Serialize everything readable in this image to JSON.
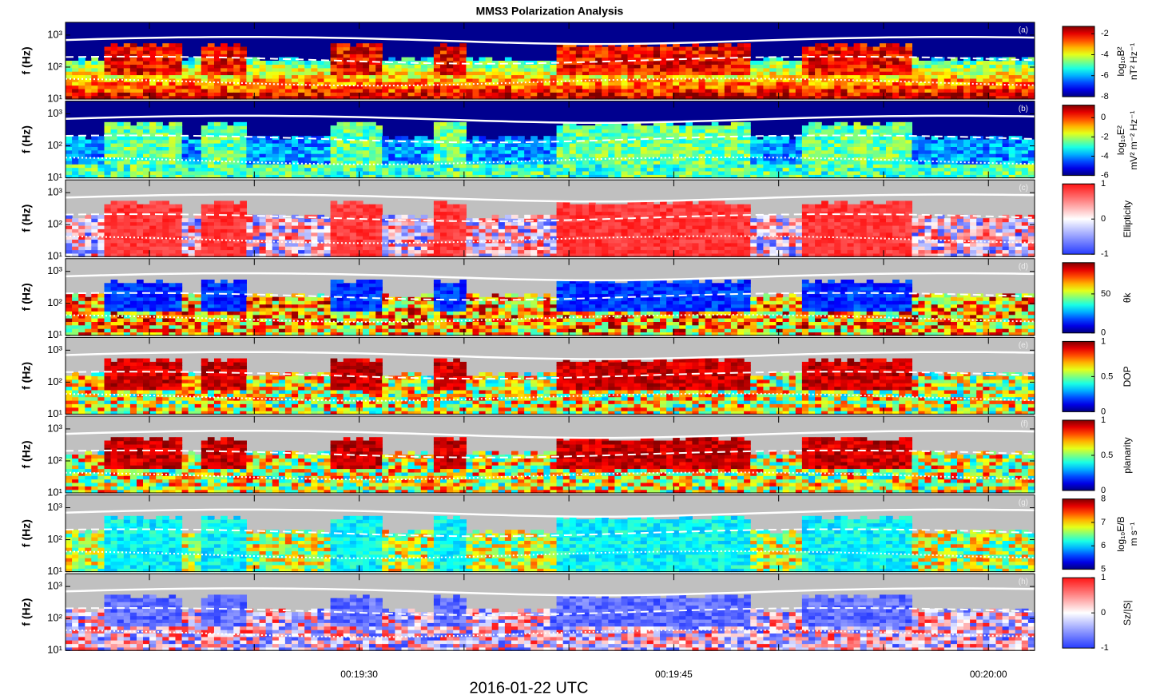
{
  "chart_data": {
    "type": "spectrogram",
    "title": "MMS3 Polarization Analysis",
    "xlabel": "2016-01-22 UTC",
    "ylabel": "f (Hz)",
    "xlim": [
      16,
      62.2
    ],
    "xticks": [
      {
        "value": 30,
        "label": "00:19:30"
      },
      {
        "value": 45,
        "label": "00:19:45"
      },
      {
        "value": 60,
        "label": "00:20:00"
      }
    ],
    "xminor_ticks": [
      20,
      25,
      35,
      40,
      50,
      55
    ],
    "ylim": [
      10,
      2500
    ],
    "yscale": "log",
    "yticks": [
      {
        "value": 10,
        "label": "10¹"
      },
      {
        "value": 100,
        "label": "10²"
      },
      {
        "value": 1000,
        "label": "10³"
      }
    ],
    "panels": [
      {
        "label": "(a)",
        "colormap": "jet",
        "colorbar_label": [
          "log₁₀B²",
          "nT² Hz⁻¹"
        ],
        "clim": [
          -8,
          -1.3
        ],
        "cticks": [
          -2,
          -4,
          -6,
          -8
        ]
      },
      {
        "label": "(b)",
        "colormap": "jet",
        "colorbar_label": [
          "log₁₀E²",
          "mV² m⁻² Hz⁻¹"
        ],
        "clim": [
          -6,
          1.3
        ],
        "cticks": [
          0,
          -2,
          -4,
          -6
        ]
      },
      {
        "label": "(c)",
        "colormap": "bwr",
        "colorbar_label": [
          "Ellipticity"
        ],
        "clim": [
          -1,
          1
        ],
        "cticks": [
          1,
          0,
          -1
        ]
      },
      {
        "label": "(d)",
        "colormap": "jet",
        "colorbar_label": [
          "θk"
        ],
        "clim": [
          0,
          90
        ],
        "cticks": [
          50,
          0
        ]
      },
      {
        "label": "(e)",
        "colormap": "jet",
        "colorbar_label": [
          "DOP"
        ],
        "clim": [
          0,
          1
        ],
        "cticks": [
          1,
          0.5,
          0
        ]
      },
      {
        "label": "(f)",
        "colormap": "jet",
        "colorbar_label": [
          "planarity"
        ],
        "clim": [
          0,
          1
        ],
        "cticks": [
          1,
          0.5,
          0
        ]
      },
      {
        "label": "(g)",
        "colormap": "jet",
        "colorbar_label": [
          "log₁₀E/B",
          "m s⁻¹"
        ],
        "clim": [
          5,
          8
        ],
        "cticks": [
          8,
          7,
          6,
          5
        ]
      },
      {
        "label": "(h)",
        "colormap": "bwr",
        "colorbar_label": [
          "Sz/|S|"
        ],
        "clim": [
          -1,
          1
        ],
        "cticks": [
          1,
          0,
          -1
        ]
      }
    ]
  }
}
